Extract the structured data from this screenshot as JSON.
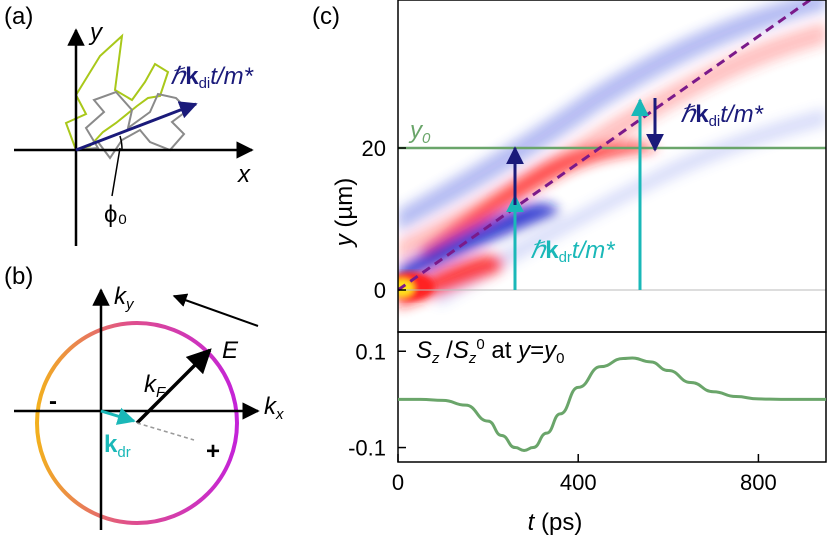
{
  "colors": {
    "axis": "#000000",
    "dark_blue": "#1a1a7a",
    "cyan": "#1ab8b8",
    "green": "#6aa56a",
    "purple": "#7b1a8a",
    "map_red": "#ff2020",
    "map_blue": "#0a14c8",
    "map_yellow": "#ffe21a",
    "walk_yellow": "#a9c81a",
    "walk_gray": "#8a8a8a",
    "circle_orange": "#f2a51e",
    "circle_pink": "#d44a9a",
    "circle_magenta": "#c423d8"
  },
  "panel_a": {
    "label": "(a)",
    "y_axis": "y",
    "x_axis": "x",
    "angle_label": "ϕ₀",
    "vec_hbar": "ℏ",
    "vec_k": "k",
    "vec_sub": "di",
    "vec_rest": "t/m*"
  },
  "panel_b": {
    "label": "(b)",
    "ky_main": "k",
    "ky_sub": "y",
    "kx_main": "k",
    "kx_sub": "x",
    "field": "E",
    "kF_main": "k",
    "kF_sub": "F",
    "kdr_main": "k",
    "kdr_sub": "dr",
    "minus": "-",
    "plus": "+"
  },
  "panel_c": {
    "label": "(c)",
    "ylabel_var": "y",
    "ylabel_unit": " (µm)",
    "xlabel_var": "t",
    "xlabel_unit": " (ps)",
    "y0_main": "y",
    "y0_sub": "0",
    "top_yticks": [
      "20",
      "0"
    ],
    "bottom_yticks": [
      "0.1",
      "-0.1"
    ],
    "xticks": [
      "0",
      "400",
      "800"
    ],
    "kdi_hbar": "ℏ",
    "kdi_k": "k",
    "kdi_sub": "di",
    "kdi_rest": "t/m*",
    "kdr_hbar": "ℏ",
    "kdr_k": "k",
    "kdr_sub": "dr",
    "kdr_rest": "t/m*",
    "bottom_title_S": "S",
    "bottom_title_sub": "z",
    "bottom_title_sep": " /",
    "bottom_title_S2": "S",
    "bottom_title_sub2": "z",
    "bottom_title_sup2": "0",
    "bottom_title_rest1": " at ",
    "bottom_title_y": "y",
    "bottom_title_eq": "=",
    "bottom_title_y0": "y",
    "bottom_title_y0sub": "0"
  },
  "chart_data": {
    "type": "line",
    "title": "Sz/Sz0 at y=y0",
    "xlabel": "t (ps)",
    "ylabel": "",
    "xlim": [
      0,
      950
    ],
    "ylim": [
      -0.13,
      0.14
    ],
    "x": [
      0,
      50,
      100,
      150,
      200,
      230,
      260,
      280,
      300,
      330,
      360,
      400,
      450,
      500,
      520,
      560,
      600,
      650,
      700,
      750,
      800,
      850,
      900,
      950
    ],
    "series": [
      {
        "values": [
          0.0,
          0.0,
          -0.002,
          -0.012,
          -0.045,
          -0.075,
          -0.1,
          -0.106,
          -0.1,
          -0.07,
          -0.03,
          0.025,
          0.068,
          0.085,
          0.086,
          0.078,
          0.06,
          0.035,
          0.016,
          0.006,
          0.001,
          0.0,
          0.0,
          0.0
        ]
      }
    ]
  }
}
